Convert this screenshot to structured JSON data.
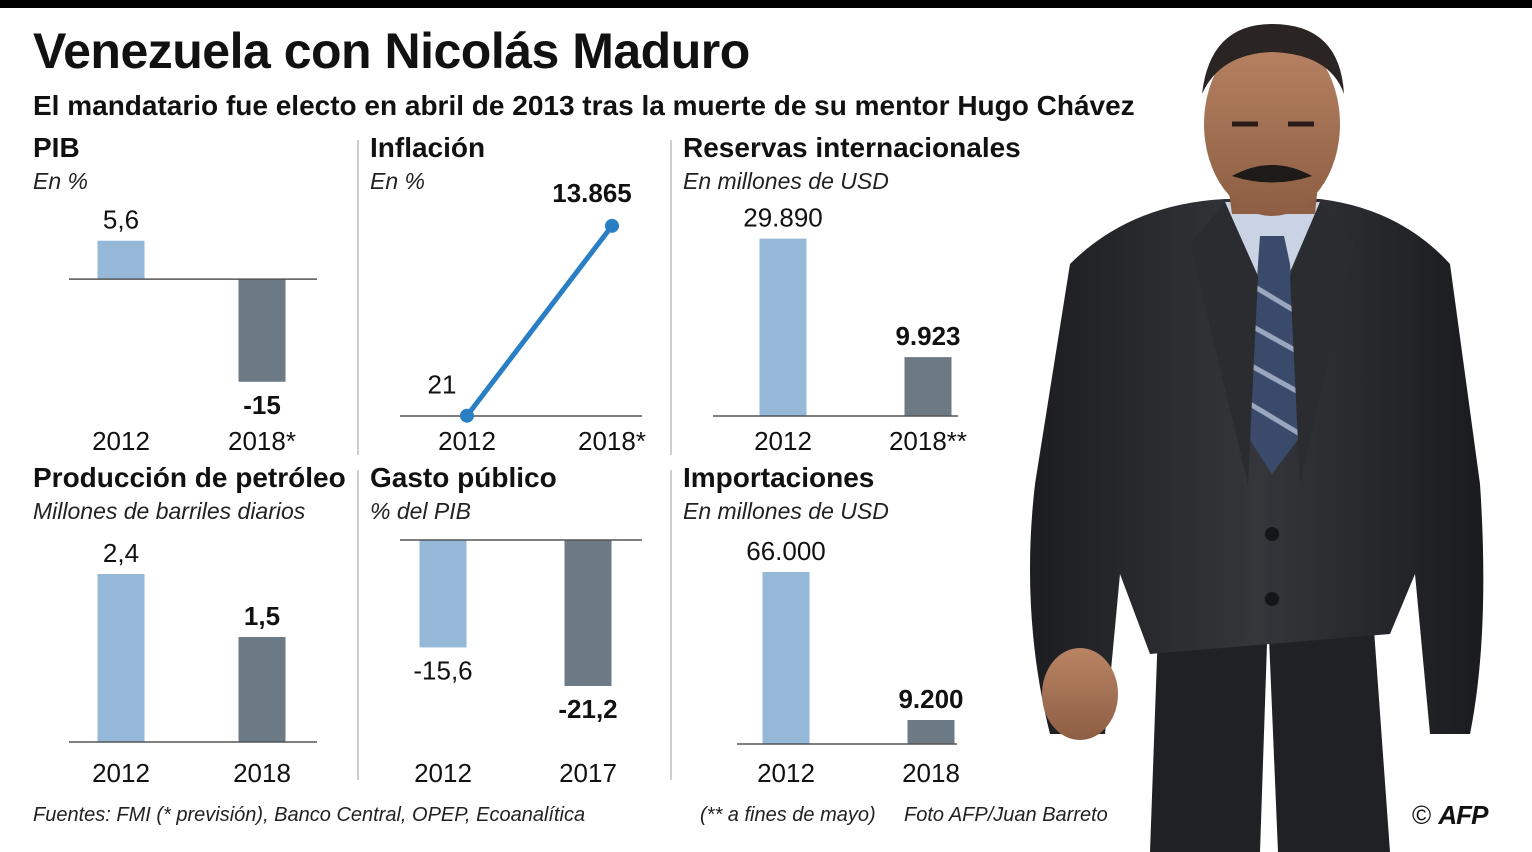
{
  "title": "Venezuela con Nicolás Maduro",
  "subtitle": "El mandatario fue electo en abril de 2013 tras la muerte de su mentor Hugo Chávez",
  "colors": {
    "bar_light": "#95b8d9",
    "bar_dark": "#6b7a84",
    "line": "#2a7fc4"
  },
  "chart_data": [
    {
      "id": "pib",
      "type": "bar",
      "title": "PIB",
      "unit": "En %",
      "categories": [
        "2012",
        "2018*"
      ],
      "values": [
        5.6,
        -15
      ],
      "value_labels": [
        "5,6",
        "-15"
      ],
      "ylim": [
        -20,
        6
      ],
      "grid": false,
      "legend": "none"
    },
    {
      "id": "inflacion",
      "type": "line",
      "title": "Inflación",
      "unit": "En %",
      "categories": [
        "2012",
        "2018*"
      ],
      "values": [
        21,
        13865
      ],
      "value_labels": [
        "21",
        "13.865"
      ],
      "ylim": [
        0,
        14000
      ],
      "grid": false,
      "legend": "none"
    },
    {
      "id": "reservas",
      "type": "bar",
      "title": "Reservas internacionales",
      "unit": "En millones de USD",
      "categories": [
        "2012",
        "2018**"
      ],
      "values": [
        29890,
        9923
      ],
      "value_labels": [
        "29.890",
        "9.923"
      ],
      "ylim": [
        0,
        30000
      ],
      "grid": false,
      "legend": "none"
    },
    {
      "id": "petroleo",
      "type": "bar",
      "title": "Producción de petróleo",
      "unit": "Millones de barriles diarios",
      "categories": [
        "2012",
        "2018"
      ],
      "values": [
        2.4,
        1.5
      ],
      "value_labels": [
        "2,4",
        "1,5"
      ],
      "ylim": [
        0,
        2.4
      ],
      "grid": false,
      "legend": "none"
    },
    {
      "id": "gasto",
      "type": "bar",
      "title": "Gasto público",
      "unit": "% del PIB",
      "categories": [
        "2012",
        "2017"
      ],
      "values": [
        -15.6,
        -21.2
      ],
      "value_labels": [
        "-15,6",
        "-21,2"
      ],
      "ylim": [
        -21.2,
        0
      ],
      "grid": false,
      "legend": "none"
    },
    {
      "id": "importaciones",
      "type": "bar",
      "title": "Importaciones",
      "unit": "En millones de USD",
      "categories": [
        "2012",
        "2018"
      ],
      "values": [
        66000,
        9200
      ],
      "value_labels": [
        "66.000",
        "9.200"
      ],
      "ylim": [
        0,
        66000
      ],
      "grid": false,
      "legend": "none"
    }
  ],
  "footer": {
    "sources": "Fuentes: FMI (* previsión), Banco Central, OPEP, Ecoanalítica",
    "note": "(** a fines de mayo)",
    "photo_credit": "Foto AFP/Juan Barreto",
    "copyright_symbol": "©",
    "agency": "AFP"
  },
  "photo": {
    "icon": "portrait-photo"
  }
}
